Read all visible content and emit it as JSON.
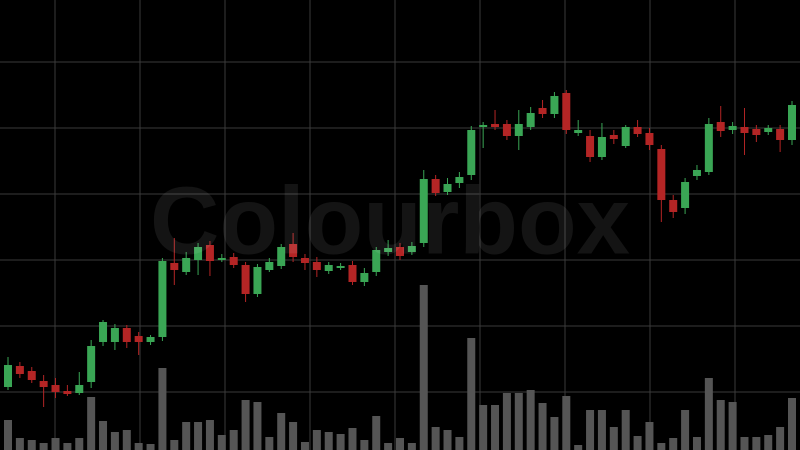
{
  "chart_data": {
    "type": "candlestick",
    "watermark": "Colourbox",
    "open": [
      63,
      84,
      79,
      69,
      65,
      59,
      57,
      68,
      108,
      108,
      122,
      114,
      108,
      113,
      187,
      178,
      190,
      205,
      190,
      193,
      185,
      156,
      180,
      184,
      206,
      192,
      188,
      179,
      182,
      185,
      168,
      178,
      198,
      203,
      198,
      207,
      271,
      258,
      267,
      275,
      323,
      326,
      326,
      314,
      323,
      342,
      336,
      357,
      317,
      314,
      293,
      315,
      304,
      323,
      317,
      301,
      250,
      242,
      274,
      278,
      328,
      320,
      323,
      321,
      318,
      321,
      310
    ],
    "high": [
      93,
      88,
      83,
      75,
      72,
      65,
      78,
      110,
      130,
      126,
      125,
      118,
      115,
      192,
      212,
      198,
      207,
      209,
      196,
      197,
      188,
      186,
      192,
      206,
      217,
      196,
      193,
      188,
      187,
      189,
      182,
      203,
      210,
      207,
      208,
      280,
      275,
      272,
      278,
      324,
      328,
      340,
      330,
      340,
      343,
      350,
      358,
      360,
      330,
      320,
      327,
      320,
      325,
      330,
      322,
      305,
      255,
      272,
      285,
      332,
      344,
      328,
      342,
      325,
      325,
      325,
      349
    ],
    "low": [
      60,
      72,
      67,
      43,
      52,
      54,
      55,
      62,
      104,
      100,
      102,
      95,
      105,
      109,
      165,
      175,
      175,
      174,
      188,
      182,
      148,
      153,
      178,
      181,
      188,
      180,
      173,
      176,
      180,
      165,
      164,
      174,
      194,
      190,
      195,
      203,
      254,
      255,
      262,
      270,
      302,
      320,
      310,
      300,
      320,
      332,
      332,
      316,
      314,
      288,
      290,
      306,
      302,
      313,
      300,
      228,
      232,
      236,
      270,
      275,
      313,
      316,
      295,
      308,
      315,
      298,
      305
    ],
    "close": [
      85,
      76,
      70,
      63,
      58,
      56,
      65,
      104,
      128,
      122,
      108,
      108,
      113,
      189,
      180,
      192,
      203,
      189,
      192,
      185,
      156,
      183,
      188,
      203,
      193,
      187,
      180,
      185,
      184,
      168,
      177,
      200,
      202,
      194,
      204,
      271,
      257,
      266,
      273,
      320,
      325,
      323,
      314,
      326,
      337,
      336,
      354,
      320,
      320,
      293,
      313,
      311,
      323,
      316,
      305,
      250,
      238,
      268,
      280,
      326,
      319,
      324,
      317,
      315,
      322,
      310,
      345
    ],
    "volume": [
      30,
      12,
      10,
      7,
      12,
      7,
      12,
      53,
      29,
      18,
      20,
      7,
      6,
      82,
      10,
      28,
      28,
      30,
      15,
      20,
      50,
      48,
      13,
      37,
      28,
      8,
      20,
      18,
      16,
      22,
      10,
      34,
      7,
      12,
      7,
      165,
      23,
      20,
      13,
      112,
      45,
      45,
      57,
      57,
      60,
      47,
      33,
      54,
      5,
      40,
      40,
      23,
      40,
      14,
      28,
      7,
      12,
      40,
      13,
      72,
      50,
      48,
      13,
      13,
      15,
      23,
      52
    ],
    "up_color": "#3aa655",
    "down_color": "#b42525",
    "volume_color": "#555555",
    "ylim": [
      0,
      450
    ],
    "yticks": [
      58,
      124,
      190,
      256,
      322,
      388
    ],
    "volume_ylim": [
      0,
      450
    ],
    "grid": true
  }
}
